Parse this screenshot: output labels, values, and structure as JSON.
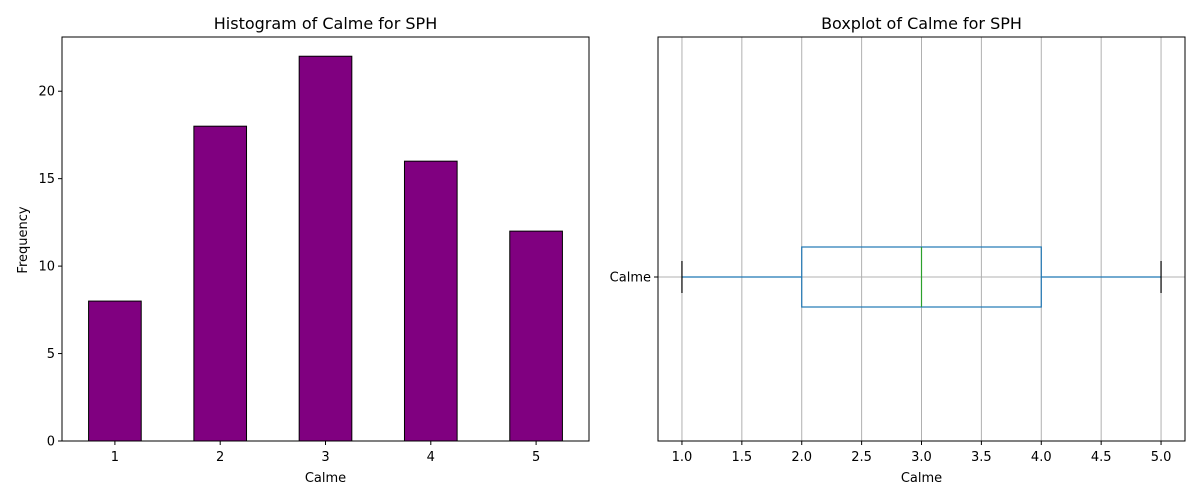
{
  "chart_data": [
    {
      "type": "bar",
      "title": "Histogram of Calme for SPH",
      "xlabel": "Calme",
      "ylabel": "Frequency",
      "categories": [
        "1",
        "2",
        "3",
        "4",
        "5"
      ],
      "values": [
        8,
        18,
        22,
        16,
        12
      ],
      "ylim": [
        0,
        23.1
      ],
      "yticks": [
        0,
        5,
        10,
        15,
        20
      ],
      "bar_color": "#800080",
      "edge_color": "#000000",
      "grid": false
    },
    {
      "type": "box",
      "title": "Boxplot of Calme for SPH",
      "xlabel": "Calme",
      "category": "Calme",
      "whisker_low": 1.0,
      "q1": 2.0,
      "median": 3.0,
      "q3": 4.0,
      "whisker_high": 5.0,
      "xlim": [
        0.8,
        5.2
      ],
      "xticks": [
        "1.0",
        "1.5",
        "2.0",
        "2.5",
        "3.0",
        "3.5",
        "4.0",
        "4.5",
        "5.0"
      ],
      "box_color": "#1f77b4",
      "median_color": "#2ca02c",
      "grid": true
    }
  ]
}
